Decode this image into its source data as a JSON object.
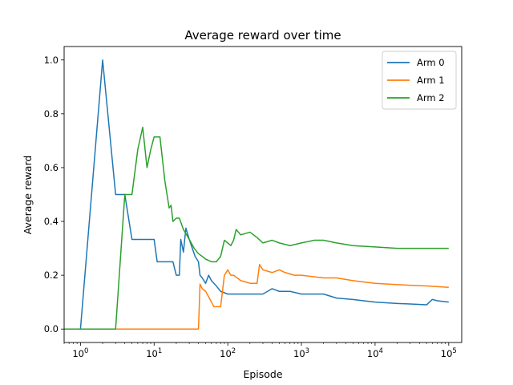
{
  "chart_data": {
    "type": "line",
    "title": "Average reward over time",
    "xlabel": "Episode",
    "ylabel": "Average reward",
    "x_scale": "log",
    "xlim": [
      0.6,
      150000
    ],
    "ylim": [
      -0.05,
      1.05
    ],
    "x_ticks": [
      {
        "value": 1,
        "base": "10",
        "exp": "0"
      },
      {
        "value": 10,
        "base": "10",
        "exp": "1"
      },
      {
        "value": 100,
        "base": "10",
        "exp": "2"
      },
      {
        "value": 1000,
        "base": "10",
        "exp": "3"
      },
      {
        "value": 10000,
        "base": "10",
        "exp": "4"
      },
      {
        "value": 100000,
        "base": "10",
        "exp": "5"
      }
    ],
    "y_ticks": [
      {
        "value": 0.0,
        "label": "0.0"
      },
      {
        "value": 0.2,
        "label": "0.2"
      },
      {
        "value": 0.4,
        "label": "0.4"
      },
      {
        "value": 0.6,
        "label": "0.6"
      },
      {
        "value": 0.8,
        "label": "0.8"
      },
      {
        "value": 1.0,
        "label": "1.0"
      }
    ],
    "grid": false,
    "legend_position": "top-right",
    "series": [
      {
        "name": "Arm 0",
        "color": "#1f77b4",
        "points": [
          [
            0.6,
            0
          ],
          [
            1,
            0
          ],
          [
            2,
            1.0
          ],
          [
            3,
            0.5
          ],
          [
            4,
            0.5
          ],
          [
            5,
            0.333
          ],
          [
            6,
            0.333
          ],
          [
            8,
            0.333
          ],
          [
            10,
            0.333
          ],
          [
            11,
            0.25
          ],
          [
            14,
            0.25
          ],
          [
            16,
            0.25
          ],
          [
            18,
            0.25
          ],
          [
            20,
            0.2
          ],
          [
            22,
            0.2
          ],
          [
            23,
            0.333
          ],
          [
            25,
            0.286
          ],
          [
            27,
            0.375
          ],
          [
            30,
            0.333
          ],
          [
            33,
            0.3
          ],
          [
            36,
            0.27
          ],
          [
            40,
            0.25
          ],
          [
            42,
            0.2
          ],
          [
            45,
            0.19
          ],
          [
            50,
            0.17
          ],
          [
            55,
            0.2
          ],
          [
            60,
            0.18
          ],
          [
            70,
            0.16
          ],
          [
            80,
            0.14
          ],
          [
            100,
            0.13
          ],
          [
            200,
            0.13
          ],
          [
            300,
            0.13
          ],
          [
            400,
            0.15
          ],
          [
            500,
            0.14
          ],
          [
            700,
            0.14
          ],
          [
            1000,
            0.13
          ],
          [
            2000,
            0.13
          ],
          [
            3000,
            0.115
          ],
          [
            5000,
            0.11
          ],
          [
            7000,
            0.105
          ],
          [
            10000,
            0.1
          ],
          [
            20000,
            0.095
          ],
          [
            30000,
            0.093
          ],
          [
            50000,
            0.09
          ],
          [
            60000,
            0.11
          ],
          [
            70000,
            0.105
          ],
          [
            100000,
            0.1
          ]
        ]
      },
      {
        "name": "Arm 1",
        "color": "#ff7f0e",
        "points": [
          [
            0.6,
            0
          ],
          [
            40,
            0
          ],
          [
            42,
            0.167
          ],
          [
            45,
            0.15
          ],
          [
            50,
            0.14
          ],
          [
            55,
            0.12
          ],
          [
            60,
            0.1
          ],
          [
            65,
            0.083
          ],
          [
            80,
            0.083
          ],
          [
            90,
            0.2
          ],
          [
            100,
            0.22
          ],
          [
            110,
            0.2
          ],
          [
            120,
            0.2
          ],
          [
            150,
            0.18
          ],
          [
            200,
            0.17
          ],
          [
            250,
            0.17
          ],
          [
            270,
            0.24
          ],
          [
            300,
            0.22
          ],
          [
            400,
            0.21
          ],
          [
            500,
            0.22
          ],
          [
            600,
            0.21
          ],
          [
            800,
            0.2
          ],
          [
            1000,
            0.2
          ],
          [
            2000,
            0.19
          ],
          [
            3000,
            0.19
          ],
          [
            5000,
            0.18
          ],
          [
            10000,
            0.17
          ],
          [
            20000,
            0.165
          ],
          [
            50000,
            0.16
          ],
          [
            100000,
            0.155
          ]
        ]
      },
      {
        "name": "Arm 2",
        "color": "#2ca02c",
        "points": [
          [
            0.6,
            0
          ],
          [
            3,
            0
          ],
          [
            4,
            0.5
          ],
          [
            5,
            0.5
          ],
          [
            6,
            0.667
          ],
          [
            7,
            0.75
          ],
          [
            8,
            0.6
          ],
          [
            9,
            0.667
          ],
          [
            10,
            0.714
          ],
          [
            12,
            0.714
          ],
          [
            14,
            0.55
          ],
          [
            16,
            0.45
          ],
          [
            17,
            0.46
          ],
          [
            18,
            0.4
          ],
          [
            20,
            0.412
          ],
          [
            22,
            0.412
          ],
          [
            25,
            0.37
          ],
          [
            30,
            0.333
          ],
          [
            35,
            0.3
          ],
          [
            40,
            0.28
          ],
          [
            45,
            0.27
          ],
          [
            50,
            0.26
          ],
          [
            60,
            0.25
          ],
          [
            70,
            0.25
          ],
          [
            80,
            0.27
          ],
          [
            90,
            0.33
          ],
          [
            100,
            0.32
          ],
          [
            110,
            0.31
          ],
          [
            120,
            0.33
          ],
          [
            130,
            0.37
          ],
          [
            150,
            0.35
          ],
          [
            200,
            0.36
          ],
          [
            250,
            0.34
          ],
          [
            300,
            0.32
          ],
          [
            400,
            0.33
          ],
          [
            500,
            0.32
          ],
          [
            700,
            0.31
          ],
          [
            1000,
            0.32
          ],
          [
            1500,
            0.33
          ],
          [
            2000,
            0.33
          ],
          [
            3000,
            0.32
          ],
          [
            5000,
            0.31
          ],
          [
            10000,
            0.305
          ],
          [
            20000,
            0.3
          ],
          [
            50000,
            0.3
          ],
          [
            100000,
            0.3
          ]
        ]
      }
    ]
  }
}
